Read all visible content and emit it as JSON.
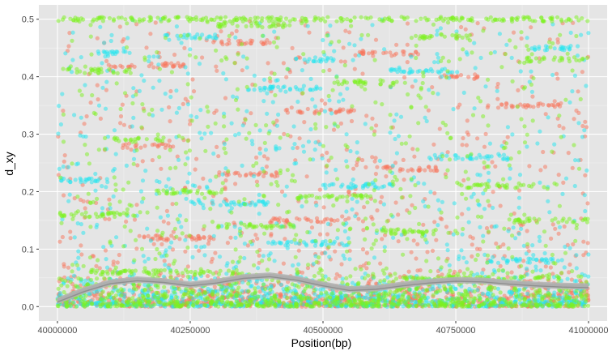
{
  "chart_data": {
    "type": "scatter",
    "xlabel": "Position(bp)",
    "ylabel": "d_xy",
    "xlim": [
      39965000,
      41035000
    ],
    "ylim": [
      -0.025,
      0.525
    ],
    "x_ticks": [
      40000000,
      40250000,
      40500000,
      40750000,
      41000000
    ],
    "x_tick_labels": [
      "40000000",
      "40250000",
      "40500000",
      "40750000",
      "41000000"
    ],
    "y_ticks": [
      0.0,
      0.1,
      0.2,
      0.3,
      0.4,
      0.5
    ],
    "y_tick_labels": [
      "0.0",
      "0.1",
      "0.2",
      "0.3",
      "0.4",
      "0.5"
    ],
    "grid": true,
    "legend": "none",
    "panel_background": "#e5e5e5",
    "point_opacity": 0.5,
    "series": [
      {
        "color": "#f8765c",
        "bands": [
          {
            "x": [
              40090000,
              40240000
            ],
            "y": 0.42
          },
          {
            "x": [
              40280000,
              40400000
            ],
            "y": 0.46
          },
          {
            "x": [
              40430000,
              40560000
            ],
            "y": 0.34
          },
          {
            "x": [
              40560000,
              40680000
            ],
            "y": 0.44
          },
          {
            "x": [
              40720000,
              40800000
            ],
            "y": 0.4
          },
          {
            "x": [
              40120000,
              40220000
            ],
            "y": 0.28
          },
          {
            "x": [
              40300000,
              40420000
            ],
            "y": 0.23
          },
          {
            "x": [
              40600000,
              40720000
            ],
            "y": 0.24
          },
          {
            "x": [
              40150000,
              40300000
            ],
            "y": 0.12
          },
          {
            "x": [
              40400000,
              40550000
            ],
            "y": 0.15
          },
          {
            "x": [
              40800000,
              40950000
            ],
            "y": 0.35
          }
        ],
        "trend": {
          "x": [
            40000000,
            40050000,
            40100000,
            40150000,
            40200000,
            40250000,
            40300000,
            40350000,
            40400000,
            40450000,
            40500000,
            40550000,
            40600000,
            40650000,
            40700000,
            40750000,
            40800000,
            40850000,
            40900000,
            40950000,
            41000000
          ],
          "y": [
            0.012,
            0.03,
            0.044,
            0.049,
            0.046,
            0.04,
            0.045,
            0.053,
            0.056,
            0.05,
            0.04,
            0.032,
            0.034,
            0.04,
            0.045,
            0.048,
            0.047,
            0.043,
            0.04,
            0.038,
            0.037
          ]
        }
      },
      {
        "color": "#22e6ef",
        "bands": [
          {
            "x": [
              40070000,
              40140000
            ],
            "y": 0.44
          },
          {
            "x": [
              40200000,
              40300000
            ],
            "y": 0.47
          },
          {
            "x": [
              40350000,
              40500000
            ],
            "y": 0.38
          },
          {
            "x": [
              40440000,
              40520000
            ],
            "y": 0.43
          },
          {
            "x": [
              40620000,
              40760000
            ],
            "y": 0.41
          },
          {
            "x": [
              40880000,
              40980000
            ],
            "y": 0.45
          },
          {
            "x": [
              40000000,
              40100000
            ],
            "y": 0.22
          },
          {
            "x": [
              40250000,
              40400000
            ],
            "y": 0.18
          },
          {
            "x": [
              40500000,
              40650000
            ],
            "y": 0.21
          },
          {
            "x": [
              40700000,
              40850000
            ],
            "y": 0.26
          },
          {
            "x": [
              40400000,
              40550000
            ],
            "y": 0.11
          },
          {
            "x": [
              40800000,
              40950000
            ],
            "y": 0.08
          }
        ],
        "trend": {
          "x": [
            40000000,
            40050000,
            40100000,
            40150000,
            40200000,
            40250000,
            40300000,
            40350000,
            40400000,
            40450000,
            40500000,
            40550000,
            40600000,
            40650000,
            40700000,
            40750000,
            40800000,
            40850000,
            40900000,
            40950000,
            41000000
          ],
          "y": [
            0.01,
            0.028,
            0.042,
            0.047,
            0.044,
            0.038,
            0.043,
            0.051,
            0.054,
            0.048,
            0.038,
            0.03,
            0.032,
            0.038,
            0.043,
            0.046,
            0.045,
            0.041,
            0.038,
            0.036,
            0.035
          ]
        }
      },
      {
        "color": "#7cf21e",
        "bands": [
          {
            "x": [
              40000000,
              41000000
            ],
            "y": 0.5
          },
          {
            "x": [
              40010000,
              40140000
            ],
            "y": 0.41
          },
          {
            "x": [
              40300000,
              40440000
            ],
            "y": 0.49
          },
          {
            "x": [
              40520000,
              40640000
            ],
            "y": 0.39
          },
          {
            "x": [
              40660000,
              40780000
            ],
            "y": 0.47
          },
          {
            "x": [
              40880000,
              40990000
            ],
            "y": 0.43
          },
          {
            "x": [
              40100000,
              40200000
            ],
            "y": 0.29
          },
          {
            "x": [
              40180000,
              40320000
            ],
            "y": 0.2
          },
          {
            "x": [
              40450000,
              40600000
            ],
            "y": 0.19
          },
          {
            "x": [
              40750000,
              40900000
            ],
            "y": 0.21
          },
          {
            "x": [
              40000000,
              40150000
            ],
            "y": 0.16
          },
          {
            "x": [
              40300000,
              40450000
            ],
            "y": 0.14
          },
          {
            "x": [
              40600000,
              40750000
            ],
            "y": 0.13
          },
          {
            "x": [
              40850000,
              41000000
            ],
            "y": 0.15
          },
          {
            "x": [
              40050000,
              40350000
            ],
            "y": 0.06
          },
          {
            "x": [
              40650000,
              40950000
            ],
            "y": 0.05
          }
        ],
        "trend": {
          "x": [
            40000000,
            40050000,
            40100000,
            40150000,
            40200000,
            40250000,
            40300000,
            40350000,
            40400000,
            40450000,
            40500000,
            40550000,
            40600000,
            40650000,
            40700000,
            40750000,
            40800000,
            40850000,
            40900000,
            40950000,
            41000000
          ],
          "y": [
            0.008,
            0.026,
            0.04,
            0.045,
            0.042,
            0.036,
            0.041,
            0.049,
            0.052,
            0.046,
            0.036,
            0.028,
            0.03,
            0.036,
            0.041,
            0.044,
            0.043,
            0.039,
            0.036,
            0.034,
            0.033
          ]
        }
      }
    ]
  }
}
